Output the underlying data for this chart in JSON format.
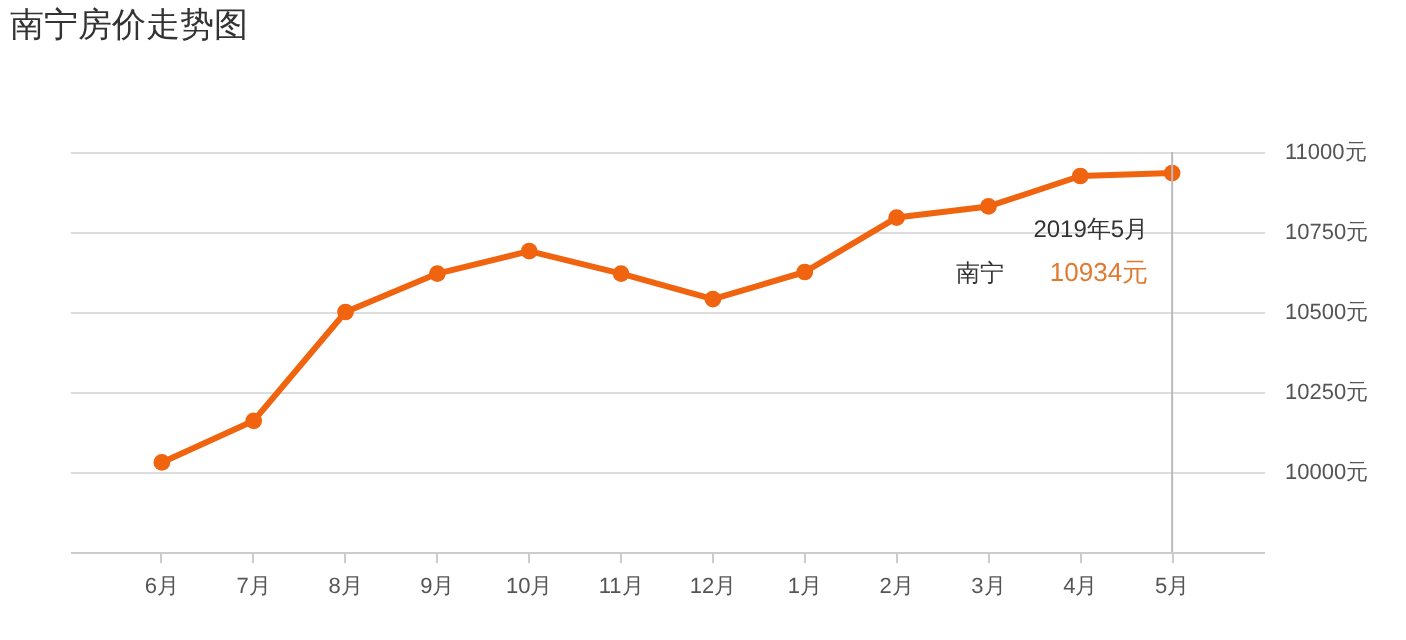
{
  "chart_data": {
    "type": "line",
    "title": "南宁房价走势图",
    "categories": [
      "6月",
      "7月",
      "8月",
      "9月",
      "10月",
      "11月",
      "12月",
      "1月",
      "2月",
      "3月",
      "4月",
      "5月"
    ],
    "series": [
      {
        "name": "南宁",
        "color": "#f06410",
        "values": [
          10030,
          10160,
          10500,
          10620,
          10690,
          10620,
          10540,
          10625,
          10795,
          10830,
          10925,
          10934
        ],
        "value_labels": [
          null,
          null,
          null,
          null,
          null,
          null,
          null,
          null,
          null,
          null,
          null,
          "10934元"
        ]
      }
    ],
    "ylim": [
      9750,
      11000
    ],
    "yticks": [
      {
        "value": 10000,
        "label": "10000元"
      },
      {
        "value": 10250,
        "label": "10250元"
      },
      {
        "value": 10500,
        "label": "10500元"
      },
      {
        "value": 10750,
        "label": "10750元"
      },
      {
        "value": 11000,
        "label": "11000元"
      }
    ],
    "grid": "y",
    "marker": "circle",
    "line_style": "solid",
    "legend": false,
    "ref_lines": [
      {
        "axis": "x",
        "value": "5月",
        "color": "#bbbbbb"
      }
    ],
    "annotations": [
      {
        "text": "2019年5月",
        "x": "5月",
        "y": 10934
      }
    ]
  }
}
